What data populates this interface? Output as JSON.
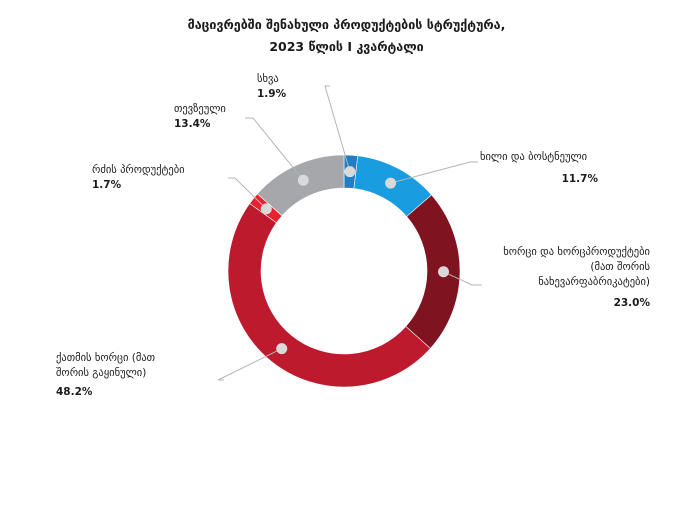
{
  "chart_data": {
    "type": "pie",
    "title_line1": "მაცივრებში შენახული პროდუქტების სტრუქტურა,",
    "title_line2": "2023 წლის I კვარტალი",
    "slices": [
      {
        "label": "სხვა",
        "value": 1.9,
        "value_text": "1.9%",
        "color": "#1f7fc4"
      },
      {
        "label": "ხილი და ბოსტნეული",
        "value": 11.7,
        "value_text": "11.7%",
        "color": "#1a9ce0"
      },
      {
        "label": "ხორცი და ხორცპროდუქტები (მათ შორის ნახევარფაბრიკატები)",
        "label_lines": [
          "ხორცი და ხორცპროდუქტები",
          "(მათ შორის",
          "ნახევარფაბრიკატები)"
        ],
        "value": 23.0,
        "value_text": "23.0%",
        "color": "#7f1420"
      },
      {
        "label": "ქათმის ხორცი (მათ შორის გაყინული)",
        "label_lines": [
          "ქათმის ხორცი (მათ",
          "შორის გაყინული)"
        ],
        "value": 48.2,
        "value_text": "48.2%",
        "color": "#be1a2d"
      },
      {
        "label": "რძის პროდუქტები",
        "value": 1.7,
        "value_text": "1.7%",
        "color": "#e8212f"
      },
      {
        "label": "თევზეული",
        "value": 13.4,
        "value_text": "13.4%",
        "color": "#a6a7aa"
      }
    ]
  }
}
